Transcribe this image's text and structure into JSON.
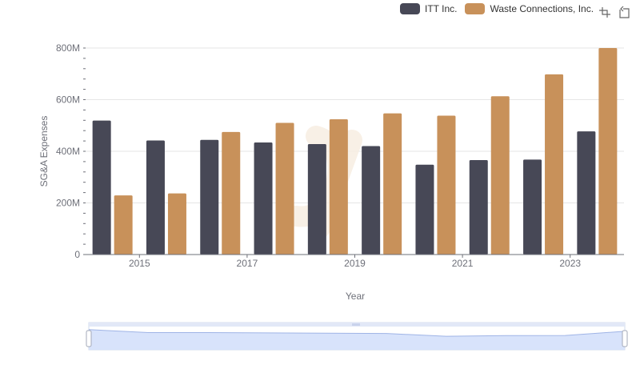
{
  "colors": {
    "itt": "#474856",
    "waste": "#c8915a",
    "grid": "#e6e6e6",
    "axis": "#6e7079"
  },
  "legend": {
    "items": [
      "ITT Inc.",
      "Waste Connections, Inc."
    ]
  },
  "toolbox": {
    "icons": [
      "zoom-select-icon",
      "zoom-reset-icon"
    ]
  },
  "chart_data": {
    "type": "bar",
    "categories": [
      "2014",
      "2015",
      "2016",
      "2017",
      "2018",
      "2019",
      "2020",
      "2021",
      "2022",
      "2023"
    ],
    "x_tick_labels": [
      "2015",
      "2017",
      "2019",
      "2021",
      "2023"
    ],
    "y_tick_labels": [
      "0",
      "200M",
      "400M",
      "600M",
      "800M"
    ],
    "series": [
      {
        "name": "ITT Inc.",
        "values": [
          519,
          442,
          444,
          434,
          428,
          420,
          348,
          366,
          368,
          477
        ]
      },
      {
        "name": "Waste Connections, Inc.",
        "values": [
          229,
          237,
          475,
          510,
          524,
          547,
          538,
          613,
          698,
          800
        ]
      }
    ],
    "xlabel": "Year",
    "ylabel": "SG&A Expenses",
    "ylim": [
      0,
      800
    ],
    "unit": "M",
    "grid": true,
    "legend_position": "top-right",
    "datazoom_slider": true
  }
}
